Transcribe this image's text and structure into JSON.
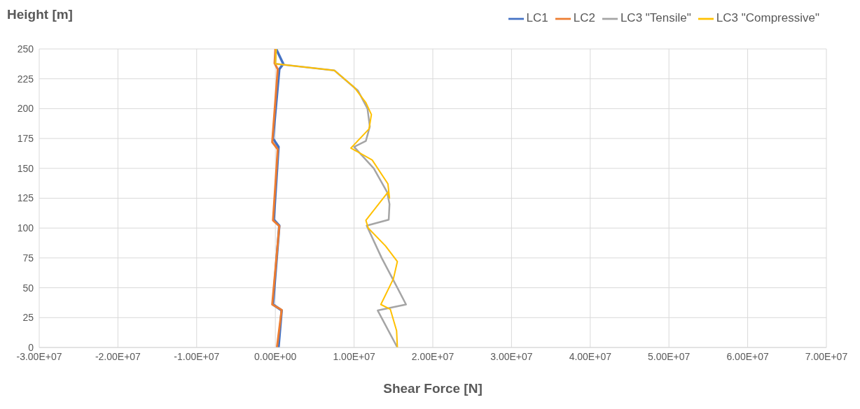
{
  "chart_data": {
    "type": "line",
    "xlabel": "Shear Force [N]",
    "ylabel": "Height [m]",
    "xlim": [
      -30000000,
      70000000
    ],
    "xticks": [
      {
        "value": -30000000,
        "label": "-3.00E+07"
      },
      {
        "value": -20000000,
        "label": "-2.00E+07"
      },
      {
        "value": -10000000,
        "label": "-1.00E+07"
      },
      {
        "value": 0,
        "label": "0.00E+00"
      },
      {
        "value": 10000000,
        "label": "1.00E+07"
      },
      {
        "value": 20000000,
        "label": "2.00E+07"
      },
      {
        "value": 30000000,
        "label": "3.00E+07"
      },
      {
        "value": 40000000,
        "label": "4.00E+07"
      },
      {
        "value": 50000000,
        "label": "5.00E+07"
      },
      {
        "value": 60000000,
        "label": "6.00E+07"
      },
      {
        "value": 70000000,
        "label": "7.00E+07"
      }
    ],
    "ylim": [
      0,
      250
    ],
    "yticks": [
      0,
      25,
      50,
      75,
      100,
      125,
      150,
      175,
      200,
      225,
      250
    ],
    "grid": true,
    "legend": "top right",
    "marker": "none",
    "line_style": "solid",
    "series": [
      {
        "name": "LC1",
        "color": "#4472c4",
        "x": [
          100000,
          1000000,
          500000,
          -300000,
          400000,
          -200000,
          500000,
          -300000,
          800000,
          400000
        ],
        "values": [
          250,
          237.5,
          233,
          175,
          168,
          107,
          102,
          36,
          31,
          0
        ]
      },
      {
        "name": "LC2",
        "color": "#ed7d31",
        "x": [
          0,
          -100000,
          300000,
          -400000,
          300000,
          -300000,
          500000,
          -400000,
          800000,
          200000
        ],
        "values": [
          250,
          238,
          233,
          172,
          166,
          106.5,
          101.6,
          36,
          31.5,
          0
        ]
      },
      {
        "name": "LC3 \"Tensile\"",
        "color": "#a5a5a5",
        "x": [
          100000,
          0,
          7500000,
          10500000,
          11700000,
          12000000,
          11500000,
          10000000,
          12500000,
          14200000,
          14500000,
          14400000,
          11600000,
          13500000,
          15500000,
          16600000,
          13000000,
          15500000
        ],
        "values": [
          250,
          237.5,
          232,
          215,
          200,
          185,
          173,
          168,
          150,
          130,
          120,
          107,
          102,
          75,
          50,
          36,
          31,
          0
        ]
      },
      {
        "name": "LC3 \"Compressive\"",
        "color": "#ffc000",
        "x": [
          100000,
          0,
          7500000,
          10000000,
          11500000,
          12200000,
          11900000,
          9600000,
          12300000,
          14300000,
          14500000,
          14300000,
          11500000,
          11800000,
          14000000,
          15500000,
          15000000,
          13400000,
          14600000,
          15400000,
          15500000
        ],
        "values": [
          250,
          237.5,
          232,
          218,
          205,
          195,
          183,
          167,
          157,
          137,
          125,
          130,
          106.5,
          100,
          85,
          72,
          57.6,
          36,
          32,
          14,
          0
        ]
      }
    ]
  }
}
